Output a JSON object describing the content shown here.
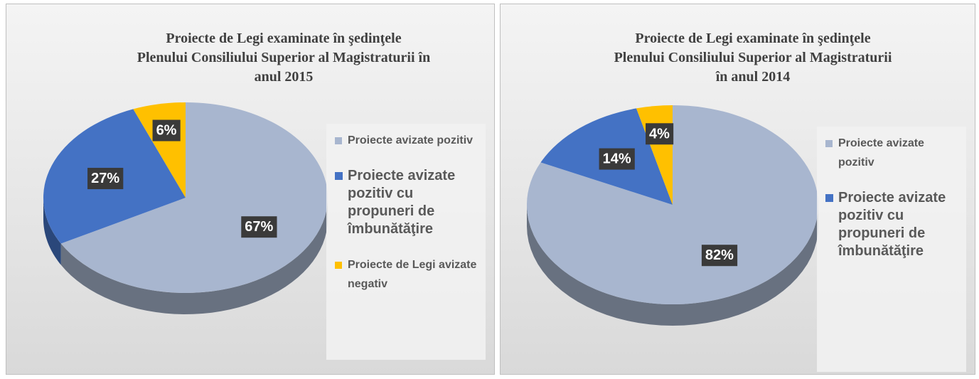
{
  "chart_data": [
    {
      "type": "pie",
      "title": [
        "Proiecte de Legi examinate în şedinţele",
        "Plenului Consiliului Superior al Magistraturii în",
        "anul 2015"
      ],
      "categories": [
        "Proiecte avizate pozitiv",
        "Proiecte avizate pozitiv cu propuneri de îmbunătăţire",
        "Proiecte de Legi avizate negativ"
      ],
      "values": [
        67,
        27,
        6
      ],
      "value_labels": [
        "67%",
        "27%",
        "6%"
      ],
      "colors": [
        "#a8b6cf",
        "#4472c4",
        "#ffc000"
      ],
      "legend": "right"
    },
    {
      "type": "pie",
      "title": [
        "Proiecte de Legi examinate în şedinţele",
        "Plenului Consiliului Superior al Magistraturii",
        "în anul 2014"
      ],
      "categories": [
        "Proiecte avizate pozitiv",
        "Proiecte avizate pozitiv cu propuneri de îmbunătăţire",
        null
      ],
      "values": [
        82,
        14,
        4
      ],
      "value_labels": [
        "82%",
        "14%",
        "4%"
      ],
      "colors": [
        "#a8b6cf",
        "#4472c4",
        "#ffc000"
      ],
      "legend": "right"
    }
  ]
}
